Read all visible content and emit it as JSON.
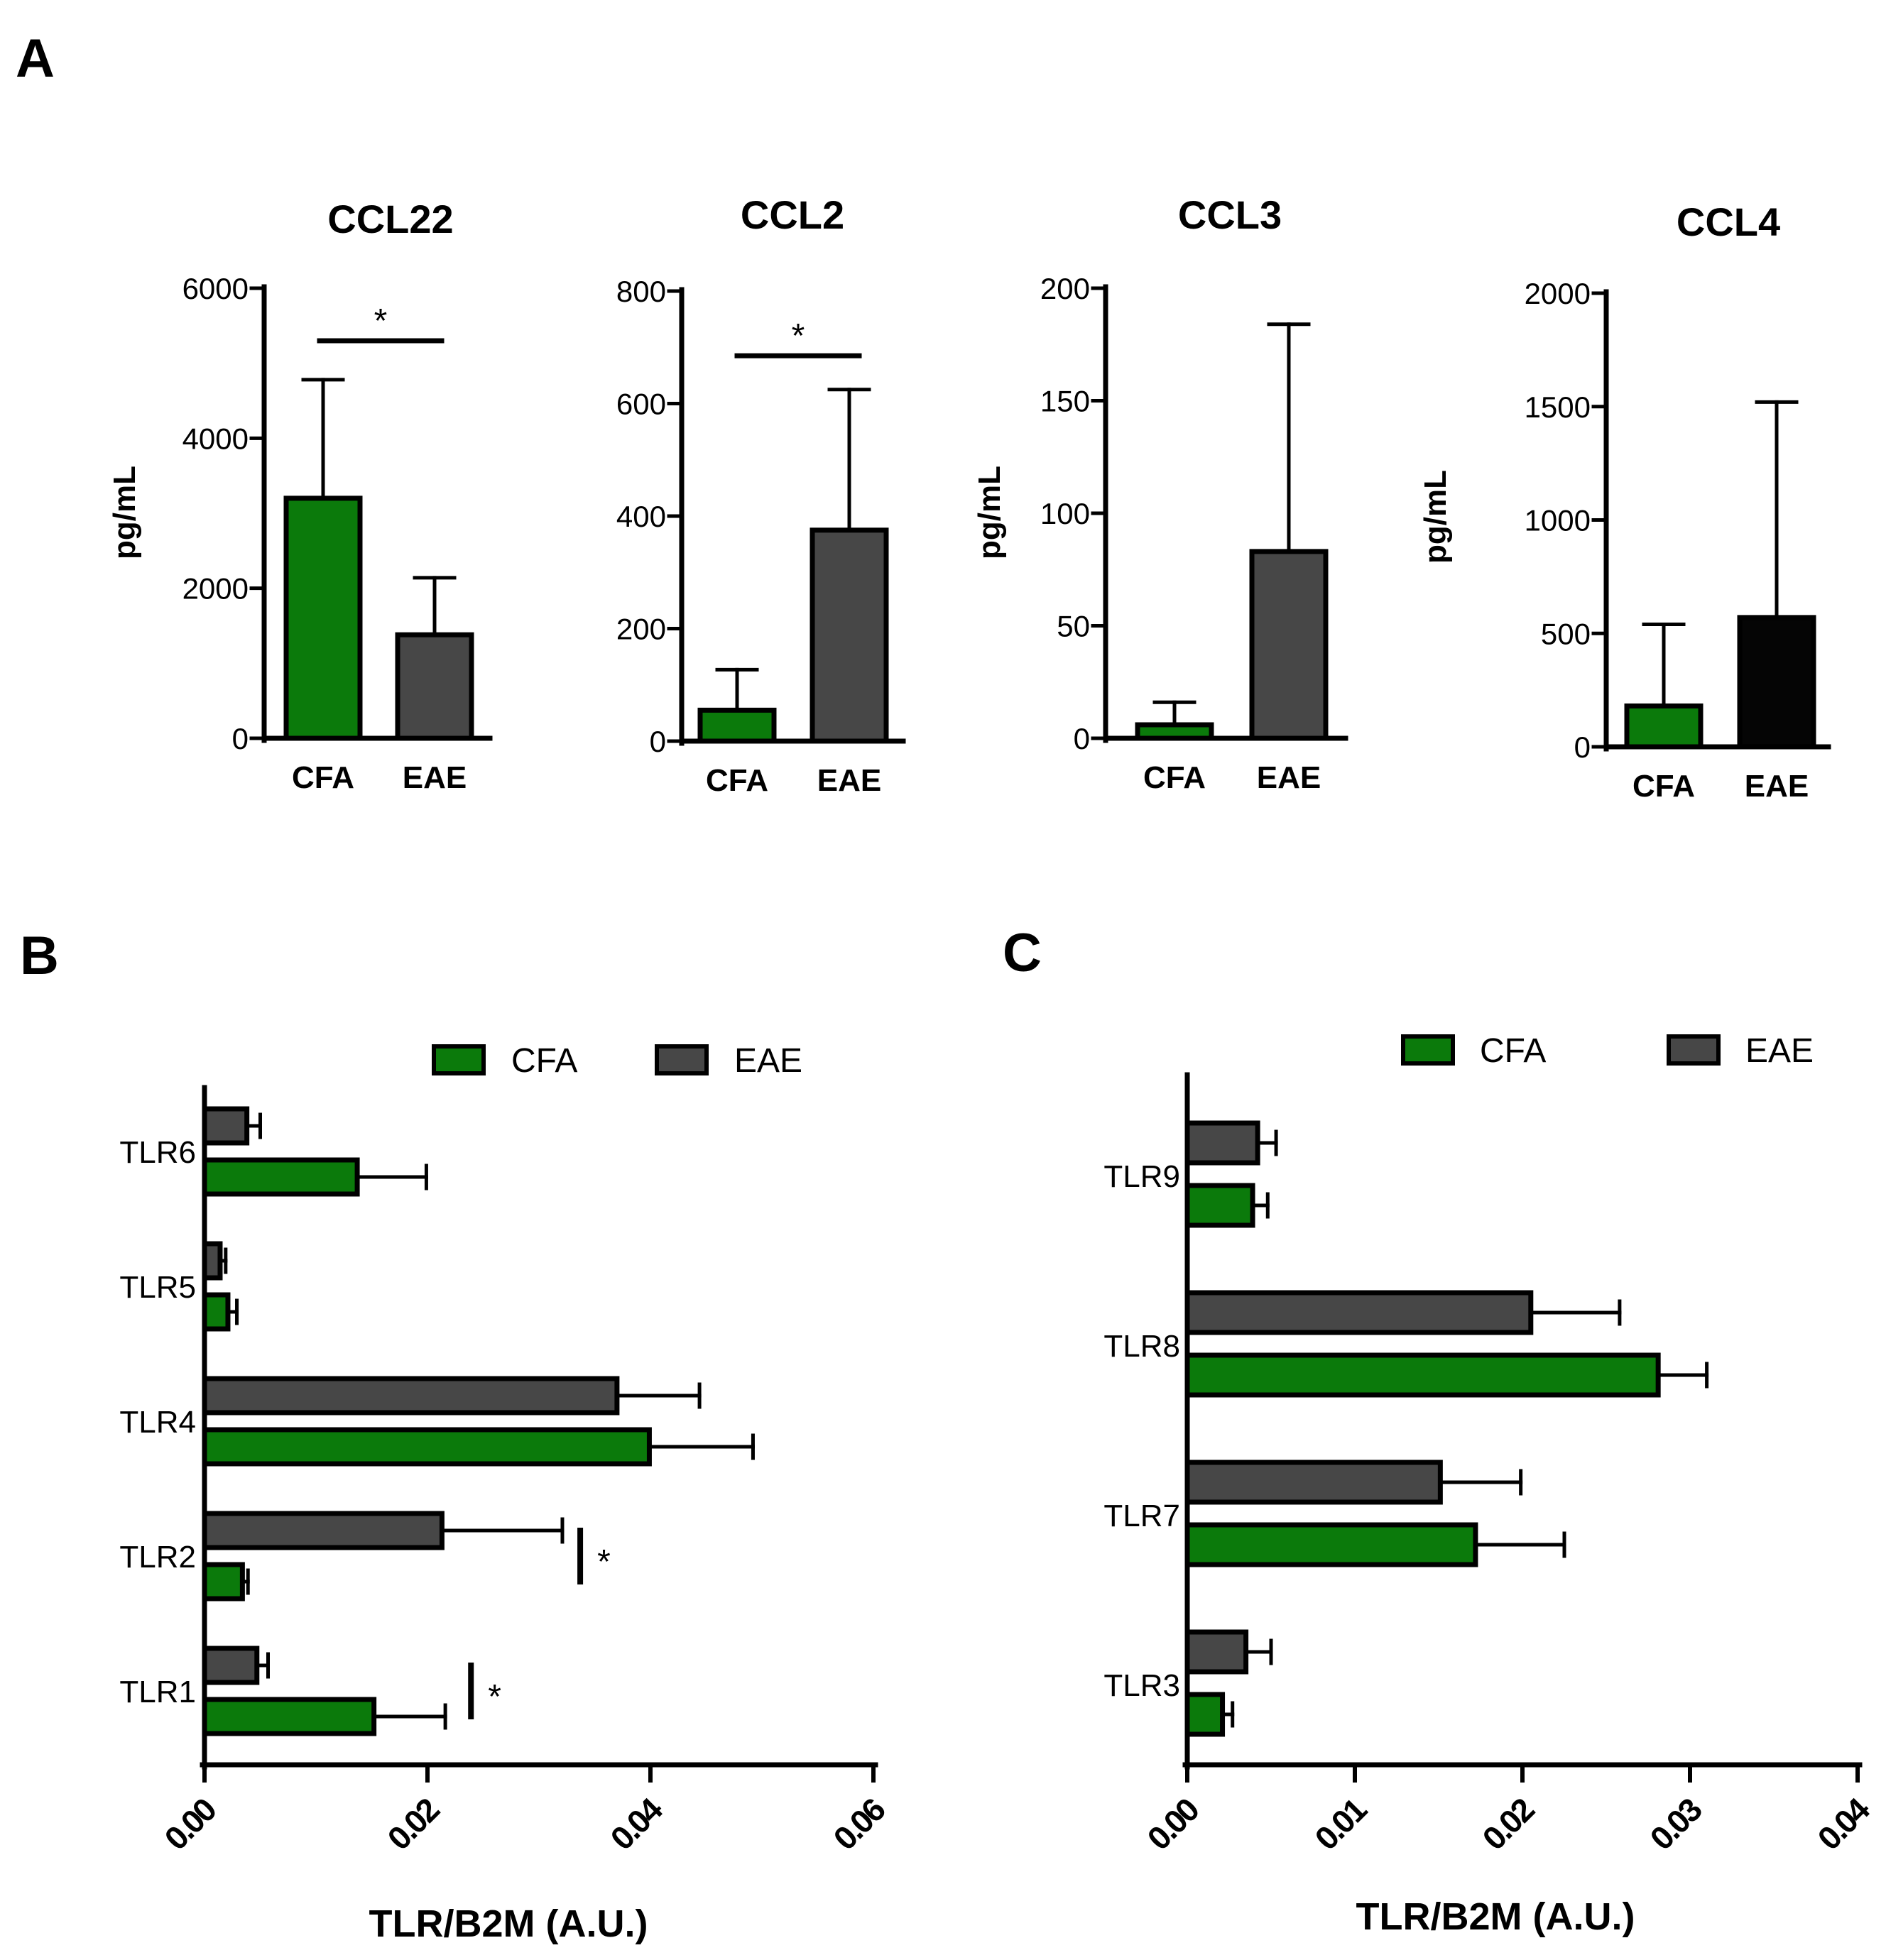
{
  "panels": {
    "a": "A",
    "b": "B",
    "c": "C"
  },
  "colors": {
    "cfa": "#0b7a0b",
    "eae": "#474747",
    "eae_ccl4": "#050505",
    "axis": "#000000"
  },
  "chart_data": [
    {
      "id": "ccl22",
      "type": "bar",
      "title": "CCL22",
      "ylabel": "pg/mL",
      "xlabel": "",
      "categories": [
        "CFA",
        "EAE"
      ],
      "values": [
        3200,
        1380
      ],
      "errors": [
        1580,
        760
      ],
      "ylim": [
        0,
        6000
      ],
      "yticks": [
        0,
        2000,
        4000,
        6000
      ],
      "ytick_labels": [
        "0",
        "2000",
        "4000",
        "6000"
      ],
      "significance": "*",
      "significance_level": 5300
    },
    {
      "id": "ccl2",
      "type": "bar",
      "title": "CCL2",
      "ylabel": "",
      "xlabel": "",
      "categories": [
        "CFA",
        "EAE"
      ],
      "values": [
        55,
        375
      ],
      "errors": [
        72,
        250
      ],
      "ylim": [
        0,
        800
      ],
      "yticks": [
        0,
        200,
        400,
        600,
        800
      ],
      "ytick_labels": [
        "0",
        "200",
        "400",
        "600",
        "800"
      ],
      "significance": "*",
      "significance_level": 685
    },
    {
      "id": "ccl3",
      "type": "bar",
      "title": "CCL3",
      "ylabel": "pg/mL",
      "xlabel": "",
      "categories": [
        "CFA",
        "EAE"
      ],
      "values": [
        6,
        83
      ],
      "errors": [
        10,
        101
      ],
      "ylim": [
        0,
        200
      ],
      "yticks": [
        0,
        50,
        100,
        150,
        200
      ],
      "ytick_labels": [
        "0",
        "50",
        "100",
        "150",
        "200"
      ]
    },
    {
      "id": "ccl4",
      "type": "bar",
      "title": "CCL4",
      "ylabel": "pg/mL",
      "xlabel": "",
      "categories": [
        "CFA",
        "EAE"
      ],
      "values": [
        180,
        570
      ],
      "errors": [
        360,
        950
      ],
      "ylim": [
        0,
        2000
      ],
      "yticks": [
        0,
        500,
        1000,
        1500,
        2000
      ],
      "ytick_labels": [
        "0",
        "500",
        "1000",
        "1500",
        "2000"
      ]
    },
    {
      "id": "tlr_b",
      "type": "bar",
      "orientation": "horizontal",
      "xlabel": "TLR/B2M (A.U.)",
      "ylabel": "",
      "categories": [
        "TLR6",
        "TLR5",
        "TLR4",
        "TLR2",
        "TLR1"
      ],
      "legend": [
        "CFA",
        "EAE"
      ],
      "legend_position": "top",
      "series": [
        {
          "name": "CFA",
          "values": [
            0.0137,
            0.0021,
            0.0399,
            0.0034,
            0.0152
          ],
          "errors": [
            0.0062,
            0.0008,
            0.0093,
            0.0005,
            0.0064
          ]
        },
        {
          "name": "EAE",
          "values": [
            0.0038,
            0.0014,
            0.037,
            0.0213,
            0.0047
          ],
          "errors": [
            0.0012,
            0.0005,
            0.0074,
            0.0108,
            0.001
          ]
        }
      ],
      "xlim": [
        0,
        0.06
      ],
      "xticks": [
        0,
        0.02,
        0.04,
        0.06
      ],
      "xtick_labels": [
        "0.00",
        "0.02",
        "0.04",
        "0.06"
      ],
      "significance": [
        {
          "category": "TLR2",
          "label": "*",
          "value": 0.0337
        },
        {
          "category": "TLR1",
          "label": "*",
          "value": 0.0239
        }
      ]
    },
    {
      "id": "tlr_c",
      "type": "bar",
      "orientation": "horizontal",
      "xlabel": "TLR/B2M (A.U.)",
      "ylabel": "",
      "categories": [
        "TLR9",
        "TLR8",
        "TLR7",
        "TLR3"
      ],
      "legend": [
        "CFA",
        "EAE"
      ],
      "legend_position": "top",
      "series": [
        {
          "name": "CFA",
          "values": [
            0.0039,
            0.0281,
            0.0172,
            0.0021
          ],
          "errors": [
            0.0009,
            0.0029,
            0.0053,
            0.0006
          ]
        },
        {
          "name": "EAE",
          "values": [
            0.0042,
            0.0205,
            0.0151,
            0.0035
          ],
          "errors": [
            0.0011,
            0.0053,
            0.0048,
            0.0015
          ]
        }
      ],
      "xlim": [
        0,
        0.04
      ],
      "xticks": [
        0,
        0.01,
        0.02,
        0.03,
        0.04
      ],
      "xtick_labels": [
        "0.00",
        "0.01",
        "0.02",
        "0.03",
        "0.04"
      ]
    }
  ]
}
